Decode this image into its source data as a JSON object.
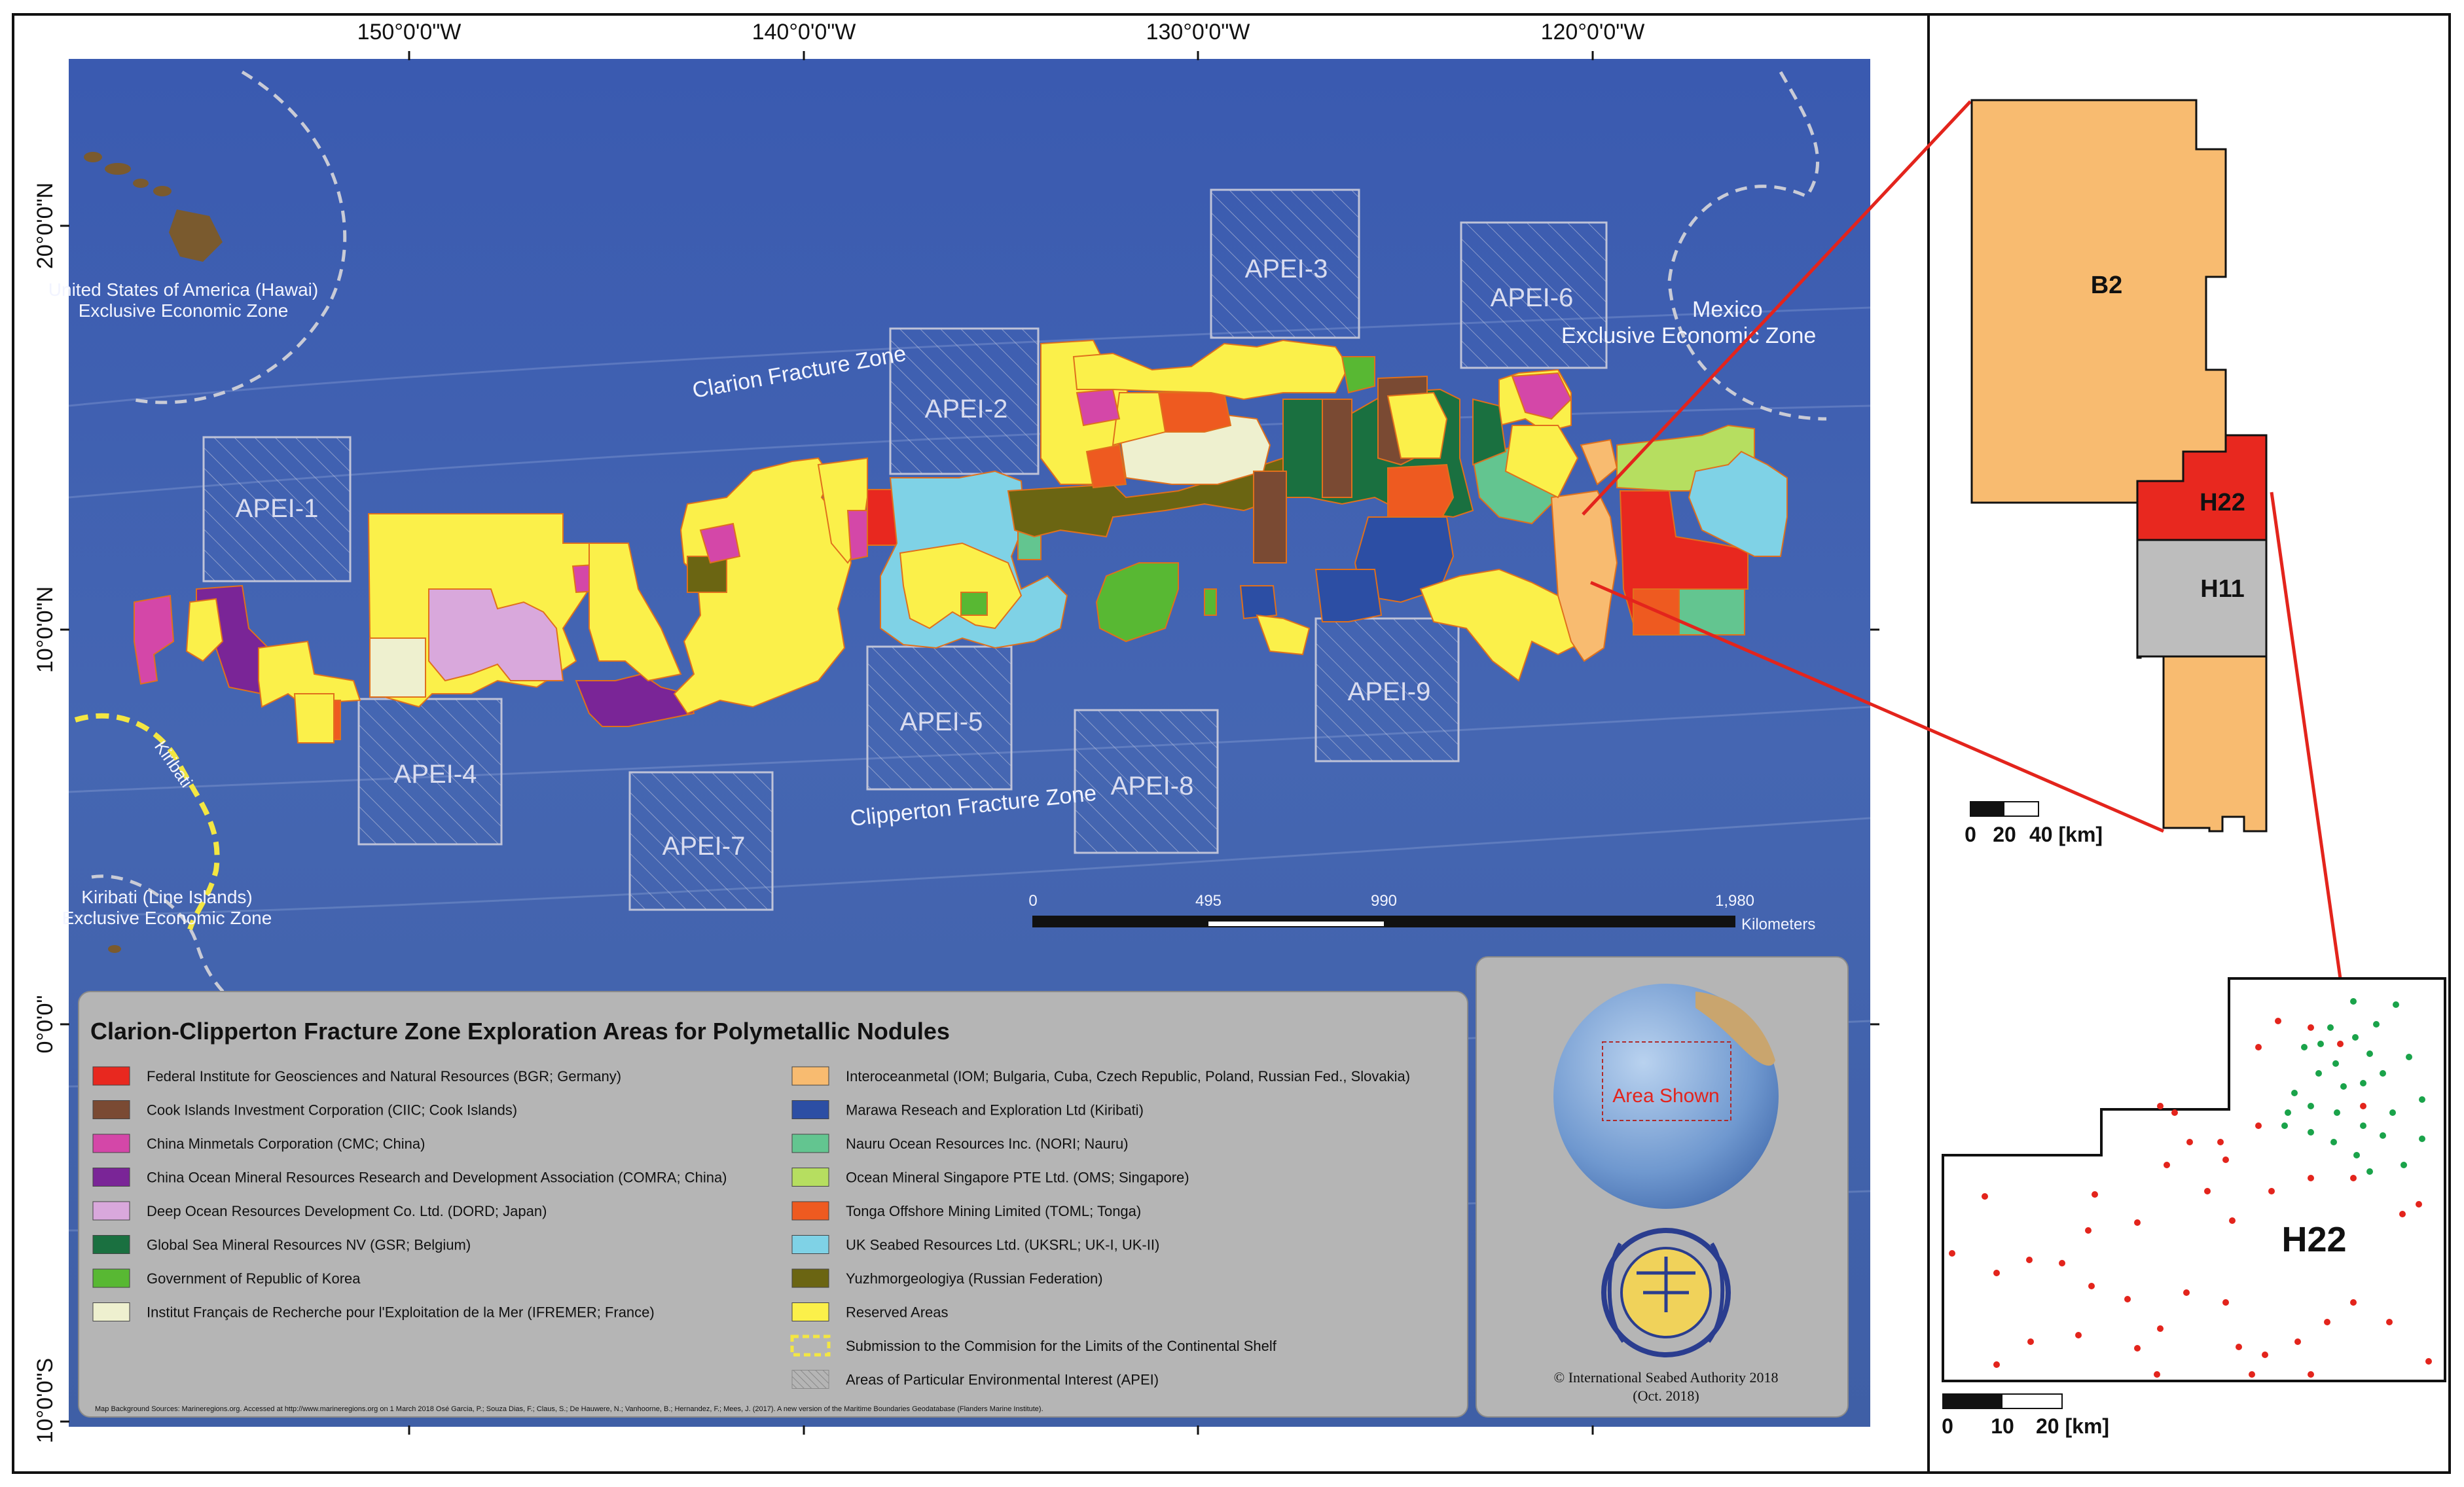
{
  "axes": {
    "top_longitudes": [
      "150°0'0\"W",
      "140°0'0\"W",
      "130°0'0\"W",
      "120°0'0\"W"
    ],
    "left_latitudes": [
      "20°0'0\"N",
      "10°0'0\"N",
      "0°0'0\"",
      "10°0'0\"S"
    ]
  },
  "map_labels": {
    "hawaii_eez_line1": "United States of America (Hawai)",
    "hawaii_eez_line2": "Exclusive Economic Zone",
    "mexico_line1": "Mexico",
    "mexico_line2": "Exclusive Economic Zone",
    "kiribati": "Kiribati",
    "kiribati_line_islands_line1": "Kiribati (Line Islands)",
    "kiribati_line_islands_line2": "Exclusive Economic Zone",
    "clarion_fz": "Clarion Fracture Zone",
    "clipperton_fz": "Clipperton Fracture Zone"
  },
  "apei": [
    "APEI-1",
    "APEI-2",
    "APEI-3",
    "APEI-4",
    "APEI-5",
    "APEI-6",
    "APEI-7",
    "APEI-8",
    "APEI-9"
  ],
  "scale_bar": {
    "ticks": [
      "0",
      "495",
      "990",
      "1,980"
    ],
    "unit": "Kilometers"
  },
  "legend": {
    "title": "Clarion-Clipperton Fracture Zone Exploration Areas for Polymetallic Nodules",
    "left_items": [
      {
        "label": "Federal Institute for Geosciences and Natural Resources (BGR; Germany)",
        "color": "#e8281f"
      },
      {
        "label": "Cook Islands Investment Corporation (CIIC; Cook Islands)",
        "color": "#7a4a33"
      },
      {
        "label": "China Minmetals Corporation (CMC; China)",
        "color": "#d447a8"
      },
      {
        "label": "China Ocean Mineral Resources Research and Development Association (COMRA; China)",
        "color": "#7a2597"
      },
      {
        "label": "Deep Ocean Resources Development Co. Ltd. (DORD; Japan)",
        "color": "#d9a8dc"
      },
      {
        "label": "Global Sea Mineral Resources NV (GSR; Belgium)",
        "color": "#1a7040"
      },
      {
        "label": "Government of Republic of Korea",
        "color": "#58b833"
      },
      {
        "label": "Institut Français de Recherche pour l'Exploitation de la Mer (IFREMER; France)",
        "color": "#eef0cf"
      }
    ],
    "right_items": [
      {
        "label": "Interoceanmetal (IOM; Bulgaria, Cuba, Czech Republic, Poland, Russian Fed., Slovakia)",
        "color": "#f8bb70"
      },
      {
        "label": "Marawa Reseach and Exploration Ltd (Kiribati)",
        "color": "#2c4ea4"
      },
      {
        "label": "Nauru Ocean Resources Inc. (NORI; Nauru)",
        "color": "#63c590"
      },
      {
        "label": "Ocean Mineral Singapore PTE Ltd. (OMS; Singapore)",
        "color": "#b6de60"
      },
      {
        "label": "Tonga Offshore Mining Limited (TOML; Tonga)",
        "color": "#ee5a20"
      },
      {
        "label": "UK Seabed Resources Ltd. (UKSRL; UK-I, UK-II)",
        "color": "#7fd2e6"
      },
      {
        "label": "Yuzhmorgeologiya (Russian Federation)",
        "color": "#6b6512"
      },
      {
        "label": "Reserved Areas",
        "color": "#fbf04a"
      },
      {
        "label": "Submission to the Commision for the Limits of the Continental Shelf",
        "color": "dashed-yellow"
      },
      {
        "label": "Areas of Particular Environmental Interest (APEI)",
        "color": "hatched-grey"
      }
    ],
    "sources": "Map Background Sources: Marineregions.org. Accessed at http://www.marineregions.org on 1 March 2018 Osé Garcia, P.; Souza Dias, F.; Claus, S.; De Hauwere, N.; Vanhoorne, B.; Hernandez, F.; Mees, J. (2017). A new version of the Maritime Boundaries Geodatabase (Flanders Marine Institute)."
  },
  "globe": {
    "label": "Area Shown"
  },
  "copyright": {
    "line1": "© International Seabed Authority 2018",
    "line2": "(Oct. 2018)"
  },
  "inset_top": {
    "label_b2": "B2",
    "label_h22": "H22",
    "label_h11": "H11",
    "scale_ticks": [
      "0",
      "20",
      "40 [km]"
    ]
  },
  "inset_bottom": {
    "label": "H22",
    "scale_ticks": [
      "0",
      "10",
      "20 [km]"
    ]
  },
  "colors": {
    "ocean": "#3f5fa8",
    "frame": "#111111",
    "connector": "#e3241c"
  }
}
